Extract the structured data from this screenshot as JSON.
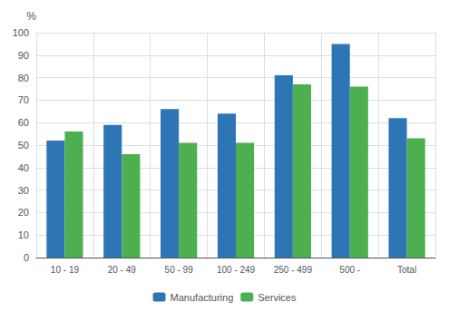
{
  "chart_data": {
    "type": "bar",
    "ylabel": "%",
    "categories": [
      "10 - 19",
      "20 - 49",
      "50 - 99",
      "100 - 249",
      "250 - 499",
      "500 -",
      "Total"
    ],
    "series": [
      {
        "name": "Manufacturing",
        "color": "#2E75B6",
        "values": [
          52,
          59,
          66,
          64,
          81,
          95,
          62
        ]
      },
      {
        "name": "Services",
        "color": "#4CAF50",
        "values": [
          56,
          46,
          51,
          51,
          77,
          76,
          53
        ]
      }
    ],
    "ylim": [
      0,
      100
    ],
    "yticks": [
      0,
      10,
      20,
      30,
      40,
      50,
      60,
      70,
      80,
      90,
      100
    ],
    "grid": true,
    "legend": "bottom"
  }
}
